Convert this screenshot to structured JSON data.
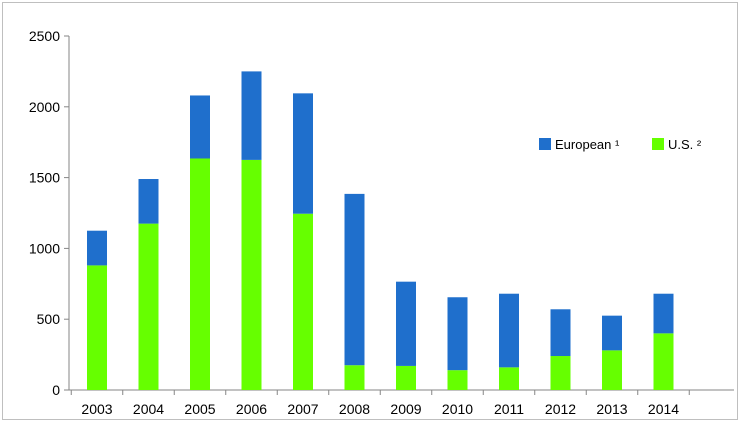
{
  "chart_data": {
    "type": "bar",
    "stacked": true,
    "title": "",
    "xlabel": "",
    "ylabel": "",
    "categories": [
      "2003",
      "2004",
      "2005",
      "2006",
      "2007",
      "2008",
      "2009",
      "2010",
      "2011",
      "2012",
      "2013",
      "2014"
    ],
    "series": [
      {
        "name": "U.S. ²",
        "color": "#66ff00",
        "values": [
          880,
          1175,
          1635,
          1625,
          1245,
          175,
          170,
          140,
          160,
          240,
          280,
          400
        ]
      },
      {
        "name": "European ¹",
        "color": "#1f6fcc",
        "values": [
          245,
          315,
          445,
          625,
          850,
          1210,
          595,
          515,
          520,
          330,
          245,
          280
        ]
      }
    ],
    "ylim": [
      0,
      2500
    ],
    "yticks": [
      "0",
      "500",
      "1000",
      "1500",
      "2000",
      "2500"
    ],
    "grid": false,
    "legend": {
      "placement": "right",
      "entries": [
        "European ¹",
        "U.S. ²"
      ]
    }
  }
}
